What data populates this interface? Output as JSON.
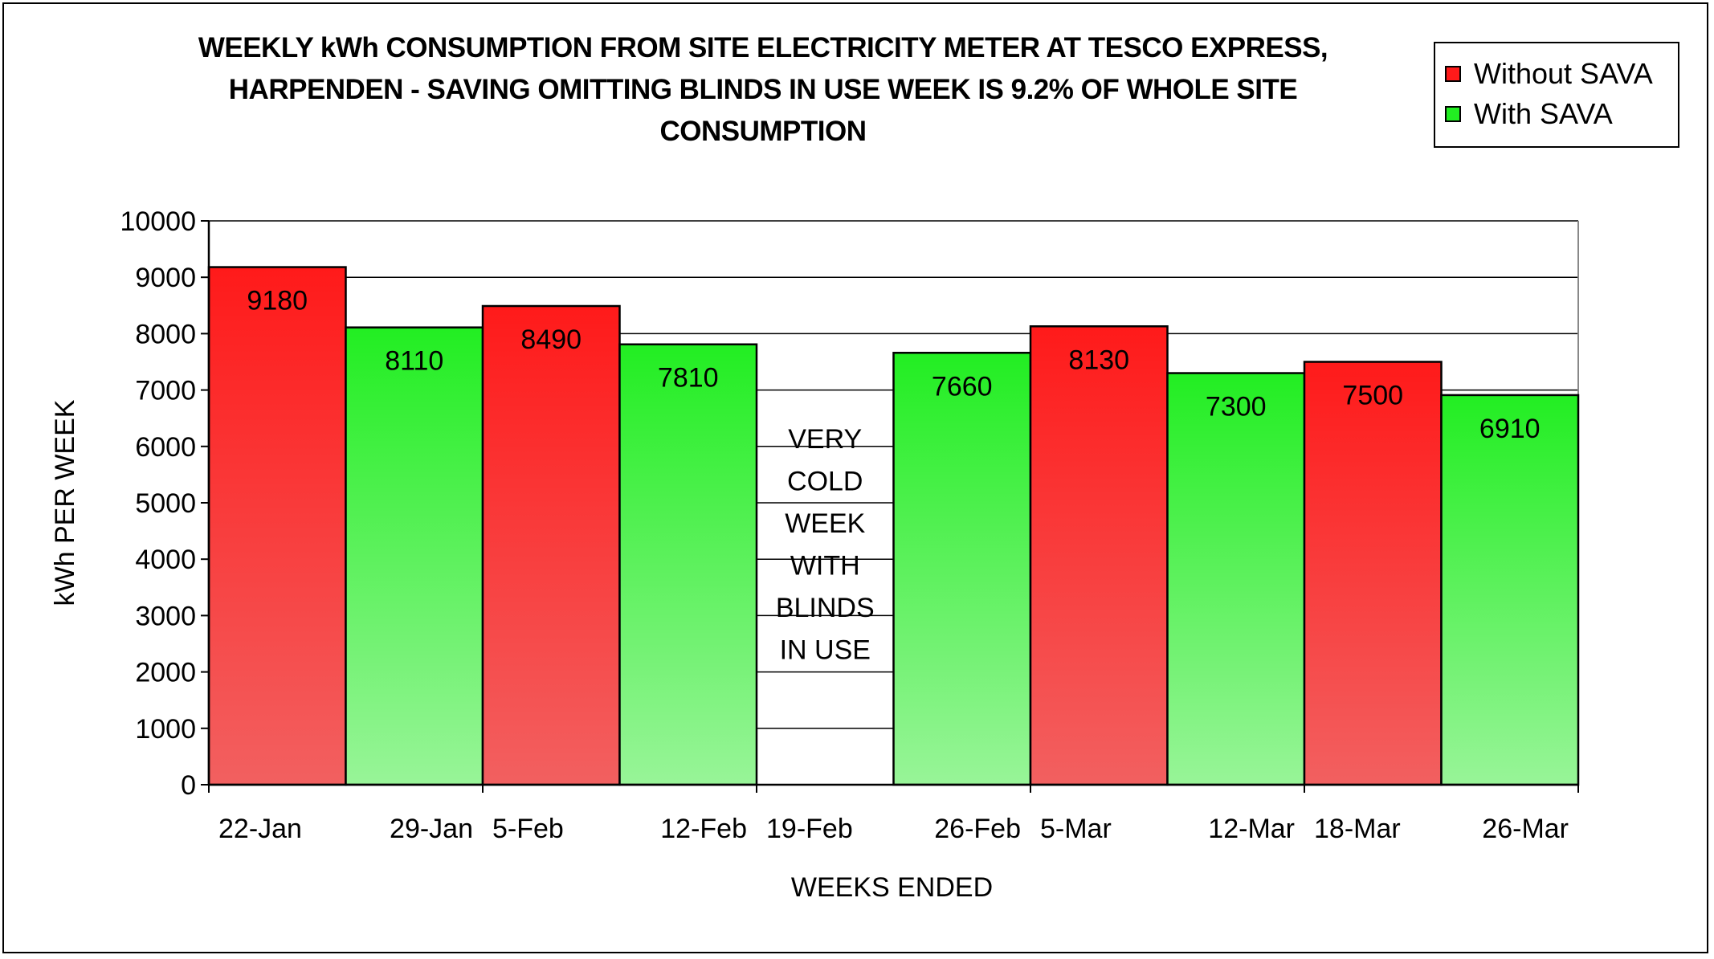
{
  "chart_data": {
    "type": "bar",
    "title_lines": [
      "WEEKLY kWh CONSUMPTION FROM SITE ELECTRICITY METER AT TESCO EXPRESS,",
      "HARPENDEN - SAVING OMITTING BLINDS IN USE WEEK IS 9.2% OF WHOLE SITE",
      "CONSUMPTION"
    ],
    "xlabel": "WEEKS ENDED",
    "ylabel": "kWh PER WEEK",
    "ylim": [
      0,
      10000
    ],
    "yticks": [
      0,
      1000,
      2000,
      3000,
      4000,
      5000,
      6000,
      7000,
      8000,
      9000,
      10000
    ],
    "grid": true,
    "legend_position": "top-right",
    "categories": [
      "22-Jan",
      "29-Jan",
      "5-Feb",
      "12-Feb",
      "19-Feb",
      "26-Feb",
      "5-Mar",
      "12-Mar",
      "18-Mar",
      "26-Mar"
    ],
    "bars": [
      {
        "category": "22-Jan",
        "value": 9180,
        "series": "Without SAVA"
      },
      {
        "category": "29-Jan",
        "value": 8110,
        "series": "With SAVA"
      },
      {
        "category": "5-Feb",
        "value": 8490,
        "series": "Without SAVA"
      },
      {
        "category": "12-Feb",
        "value": 7810,
        "series": "With SAVA"
      },
      {
        "category": "19-Feb",
        "value": null,
        "series": null
      },
      {
        "category": "26-Feb",
        "value": 7660,
        "series": "With SAVA"
      },
      {
        "category": "5-Mar",
        "value": 8130,
        "series": "Without SAVA"
      },
      {
        "category": "12-Mar",
        "value": 7300,
        "series": "With SAVA"
      },
      {
        "category": "18-Mar",
        "value": 7500,
        "series": "Without SAVA"
      },
      {
        "category": "26-Mar",
        "value": 6910,
        "series": "With SAVA"
      }
    ],
    "series": [
      {
        "name": "Without SAVA",
        "color_top": "#ff1a1a",
        "color_bottom": "#f26060"
      },
      {
        "name": "With SAVA",
        "color_top": "#22ee22",
        "color_bottom": "#98f498"
      }
    ],
    "annotation": {
      "category": "19-Feb",
      "lines": [
        "VERY",
        "COLD",
        "WEEK",
        "WITH",
        "BLINDS",
        "IN USE"
      ]
    }
  }
}
